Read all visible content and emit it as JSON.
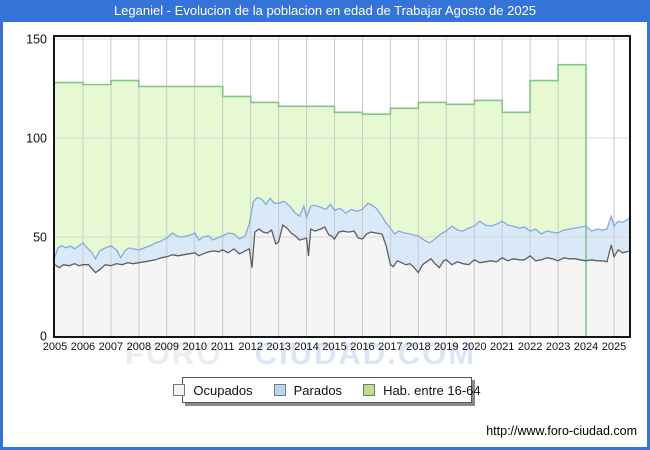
{
  "window": {
    "title": "Leganiel - Evolucion de la poblacion en edad de Trabajar Agosto de 2025"
  },
  "footer": {
    "url": "http://www.foro-ciudad.com"
  },
  "watermark": {
    "part1": "FORO",
    "part2": "CIUDAD.COM"
  },
  "colors": {
    "frame_blue": "#3673d8",
    "plot_border": "#141414",
    "grid_vertical": "#c9c9c9",
    "grid_horizontal": "#d8d8d8",
    "hab_fill": "#e6f9d2",
    "hab_line": "#86c48c",
    "parados_fill": "#d9e9f8",
    "parados_line": "#84aade",
    "ocupados_fill": "#f5f5f5",
    "ocupados_line": "#5f5f5f",
    "legend_swatches": [
      "#f2f2f2",
      "#b9d6f2",
      "#bce08a"
    ],
    "axis_text": "#111111"
  },
  "chart_data": {
    "type": "area",
    "title": "Leganiel - Evolucion de la poblacion en edad de Trabajar Agosto de 2025",
    "legend": [
      "Ocupados",
      "Parados",
      "Hab. entre 16-64"
    ],
    "legend_position": "bottom",
    "grid": true,
    "x_axis": {
      "tick_labels": [
        "2005",
        "2006",
        "2007",
        "2008",
        "2009",
        "2010",
        "2011",
        "2012",
        "2013",
        "2014",
        "2015",
        "2016",
        "2017",
        "2018",
        "2019",
        "2020",
        "2021",
        "2022",
        "2023",
        "2024",
        "2025"
      ],
      "start": 2005,
      "data_end": 2025.58
    },
    "y_axis": {
      "min": 0,
      "max": 150,
      "ticks": [
        0,
        50,
        100,
        150
      ]
    },
    "hab_16_64": {
      "note": "annual step series, habitants aged 16-64, ends at start of 2024",
      "start_year": 2005,
      "values": [
        128,
        127,
        129,
        126,
        126,
        126,
        121,
        118,
        116,
        116,
        113,
        112,
        115,
        118,
        117,
        119,
        113,
        129,
        137
      ],
      "ends_at": 2024.0
    },
    "parados_top": {
      "note": "cumulative top of stacked Parados area (Ocupados+Parados), monthly approx",
      "points": [
        [
          2005.0,
          40
        ],
        [
          2005.1,
          44.5
        ],
        [
          2005.25,
          45.5
        ],
        [
          2005.4,
          44.5
        ],
        [
          2005.55,
          45.5
        ],
        [
          2005.7,
          44
        ],
        [
          2005.85,
          45.5
        ],
        [
          2006.0,
          47
        ],
        [
          2006.15,
          44.5
        ],
        [
          2006.3,
          42.5
        ],
        [
          2006.45,
          39
        ],
        [
          2006.6,
          43
        ],
        [
          2006.8,
          44.5
        ],
        [
          2007.0,
          45.5
        ],
        [
          2007.2,
          43.5
        ],
        [
          2007.35,
          39.5
        ],
        [
          2007.5,
          43
        ],
        [
          2007.65,
          44.5
        ],
        [
          2007.8,
          44
        ],
        [
          2008.0,
          43.5
        ],
        [
          2008.2,
          44.5
        ],
        [
          2008.4,
          45.5
        ],
        [
          2008.6,
          47
        ],
        [
          2008.8,
          48
        ],
        [
          2009.0,
          49.5
        ],
        [
          2009.2,
          52
        ],
        [
          2009.35,
          50.5
        ],
        [
          2009.5,
          50
        ],
        [
          2009.7,
          50.5
        ],
        [
          2009.85,
          51
        ],
        [
          2010.0,
          52
        ],
        [
          2010.15,
          48.5
        ],
        [
          2010.3,
          50
        ],
        [
          2010.5,
          50.5
        ],
        [
          2010.65,
          48.5
        ],
        [
          2010.8,
          49.5
        ],
        [
          2011.0,
          50.5
        ],
        [
          2011.2,
          52
        ],
        [
          2011.4,
          51.5
        ],
        [
          2011.6,
          49
        ],
        [
          2011.8,
          50.5
        ],
        [
          2011.95,
          56.5
        ],
        [
          2012.1,
          68
        ],
        [
          2012.25,
          70
        ],
        [
          2012.4,
          69
        ],
        [
          2012.55,
          66.5
        ],
        [
          2012.7,
          69.5
        ],
        [
          2012.85,
          67
        ],
        [
          2013.0,
          67
        ],
        [
          2013.2,
          68
        ],
        [
          2013.4,
          65.5
        ],
        [
          2013.6,
          62
        ],
        [
          2013.75,
          60.5
        ],
        [
          2013.9,
          65.5
        ],
        [
          2014.0,
          60
        ],
        [
          2014.15,
          65.5
        ],
        [
          2014.3,
          66
        ],
        [
          2014.5,
          65
        ],
        [
          2014.7,
          64
        ],
        [
          2014.85,
          66.5
        ],
        [
          2015.0,
          63.5
        ],
        [
          2015.2,
          64.5
        ],
        [
          2015.4,
          62
        ],
        [
          2015.6,
          64
        ],
        [
          2015.8,
          63
        ],
        [
          2016.0,
          64
        ],
        [
          2016.2,
          67
        ],
        [
          2016.35,
          66
        ],
        [
          2016.5,
          64.5
        ],
        [
          2016.7,
          60.5
        ],
        [
          2016.85,
          57
        ],
        [
          2017.0,
          54.5
        ],
        [
          2017.15,
          51.5
        ],
        [
          2017.3,
          53
        ],
        [
          2017.5,
          52
        ],
        [
          2017.7,
          51.5
        ],
        [
          2017.85,
          51
        ],
        [
          2018.0,
          50.5
        ],
        [
          2018.2,
          48.5
        ],
        [
          2018.4,
          47
        ],
        [
          2018.6,
          49
        ],
        [
          2018.8,
          51.5
        ],
        [
          2019.0,
          53
        ],
        [
          2019.2,
          55.5
        ],
        [
          2019.4,
          53.5
        ],
        [
          2019.6,
          53
        ],
        [
          2019.8,
          54.5
        ],
        [
          2020.0,
          55.5
        ],
        [
          2020.2,
          58
        ],
        [
          2020.4,
          56
        ],
        [
          2020.6,
          55.5
        ],
        [
          2020.8,
          56.5
        ],
        [
          2021.0,
          58
        ],
        [
          2021.2,
          56
        ],
        [
          2021.4,
          55.5
        ],
        [
          2021.6,
          54.5
        ],
        [
          2021.8,
          55
        ],
        [
          2022.0,
          53
        ],
        [
          2022.2,
          54
        ],
        [
          2022.4,
          51.5
        ],
        [
          2022.6,
          53
        ],
        [
          2022.8,
          52.5
        ],
        [
          2023.0,
          52
        ],
        [
          2023.2,
          53.5
        ],
        [
          2023.4,
          54
        ],
        [
          2023.6,
          54.5
        ],
        [
          2023.8,
          55
        ],
        [
          2024.0,
          55.5
        ],
        [
          2024.2,
          53
        ],
        [
          2024.4,
          54
        ],
        [
          2024.6,
          53.5
        ],
        [
          2024.75,
          54
        ],
        [
          2024.9,
          60.5
        ],
        [
          2025.0,
          55.5
        ],
        [
          2025.15,
          58
        ],
        [
          2025.3,
          57.5
        ],
        [
          2025.45,
          58.5
        ],
        [
          2025.58,
          60
        ]
      ]
    },
    "ocupados": {
      "note": "employed persons, monthly approx",
      "points": [
        [
          2005.0,
          36
        ],
        [
          2005.15,
          34.5
        ],
        [
          2005.3,
          36
        ],
        [
          2005.5,
          35.5
        ],
        [
          2005.7,
          36.5
        ],
        [
          2005.85,
          35.5
        ],
        [
          2006.0,
          36
        ],
        [
          2006.2,
          36
        ],
        [
          2006.45,
          32
        ],
        [
          2006.6,
          33.5
        ],
        [
          2006.8,
          36
        ],
        [
          2007.0,
          35.5
        ],
        [
          2007.2,
          36.5
        ],
        [
          2007.4,
          36
        ],
        [
          2007.6,
          37
        ],
        [
          2007.8,
          36.5
        ],
        [
          2008.0,
          37
        ],
        [
          2008.2,
          37.5
        ],
        [
          2008.4,
          38
        ],
        [
          2008.6,
          38.5
        ],
        [
          2008.8,
          39.5
        ],
        [
          2009.0,
          40
        ],
        [
          2009.2,
          41
        ],
        [
          2009.4,
          40.5
        ],
        [
          2009.6,
          41
        ],
        [
          2009.8,
          41.5
        ],
        [
          2010.0,
          42
        ],
        [
          2010.15,
          40.5
        ],
        [
          2010.3,
          41.5
        ],
        [
          2010.5,
          42.5
        ],
        [
          2010.7,
          43
        ],
        [
          2010.85,
          42.5
        ],
        [
          2011.0,
          43.5
        ],
        [
          2011.2,
          42
        ],
        [
          2011.4,
          44
        ],
        [
          2011.6,
          41.5
        ],
        [
          2011.8,
          43
        ],
        [
          2011.95,
          44
        ],
        [
          2012.05,
          34.5
        ],
        [
          2012.15,
          52.5
        ],
        [
          2012.3,
          54
        ],
        [
          2012.45,
          52.5
        ],
        [
          2012.6,
          52
        ],
        [
          2012.75,
          53.5
        ],
        [
          2012.9,
          46.5
        ],
        [
          2013.0,
          47.5
        ],
        [
          2013.15,
          56
        ],
        [
          2013.3,
          54.5
        ],
        [
          2013.45,
          52
        ],
        [
          2013.6,
          50.5
        ],
        [
          2013.75,
          48.5
        ],
        [
          2013.9,
          49
        ],
        [
          2014.0,
          49.5
        ],
        [
          2014.07,
          40.5
        ],
        [
          2014.15,
          54
        ],
        [
          2014.3,
          53
        ],
        [
          2014.5,
          54
        ],
        [
          2014.65,
          55
        ],
        [
          2014.8,
          51
        ],
        [
          2014.9,
          50.5
        ],
        [
          2015.0,
          49
        ],
        [
          2015.15,
          52.5
        ],
        [
          2015.3,
          53
        ],
        [
          2015.5,
          52.5
        ],
        [
          2015.7,
          53
        ],
        [
          2015.85,
          49.5
        ],
        [
          2016.0,
          49
        ],
        [
          2016.15,
          51.5
        ],
        [
          2016.3,
          52.5
        ],
        [
          2016.5,
          52
        ],
        [
          2016.7,
          51.5
        ],
        [
          2016.85,
          45.5
        ],
        [
          2017.0,
          36
        ],
        [
          2017.1,
          35
        ],
        [
          2017.25,
          38
        ],
        [
          2017.4,
          37
        ],
        [
          2017.55,
          36
        ],
        [
          2017.7,
          36.5
        ],
        [
          2017.85,
          34.5
        ],
        [
          2018.0,
          32
        ],
        [
          2018.15,
          36
        ],
        [
          2018.3,
          37.5
        ],
        [
          2018.45,
          39
        ],
        [
          2018.6,
          36.5
        ],
        [
          2018.75,
          34.5
        ],
        [
          2018.9,
          38
        ],
        [
          2019.0,
          38.5
        ],
        [
          2019.2,
          36
        ],
        [
          2019.4,
          37.5
        ],
        [
          2019.6,
          36.5
        ],
        [
          2019.8,
          36
        ],
        [
          2020.0,
          38.5
        ],
        [
          2020.2,
          37
        ],
        [
          2020.4,
          37.5
        ],
        [
          2020.6,
          38
        ],
        [
          2020.8,
          37.5
        ],
        [
          2021.0,
          39.5
        ],
        [
          2021.2,
          38
        ],
        [
          2021.4,
          39
        ],
        [
          2021.6,
          38.5
        ],
        [
          2021.8,
          38.5
        ],
        [
          2022.0,
          40.5
        ],
        [
          2022.2,
          38
        ],
        [
          2022.4,
          38.5
        ],
        [
          2022.6,
          39.5
        ],
        [
          2022.8,
          39
        ],
        [
          2023.0,
          38
        ],
        [
          2023.2,
          39.5
        ],
        [
          2023.4,
          39
        ],
        [
          2023.6,
          39
        ],
        [
          2023.8,
          38.5
        ],
        [
          2024.0,
          38
        ],
        [
          2024.2,
          38.5
        ],
        [
          2024.4,
          38
        ],
        [
          2024.6,
          38
        ],
        [
          2024.75,
          37.5
        ],
        [
          2024.9,
          46
        ],
        [
          2025.0,
          40
        ],
        [
          2025.15,
          43.5
        ],
        [
          2025.3,
          42
        ],
        [
          2025.45,
          42.5
        ],
        [
          2025.58,
          43
        ]
      ]
    }
  }
}
